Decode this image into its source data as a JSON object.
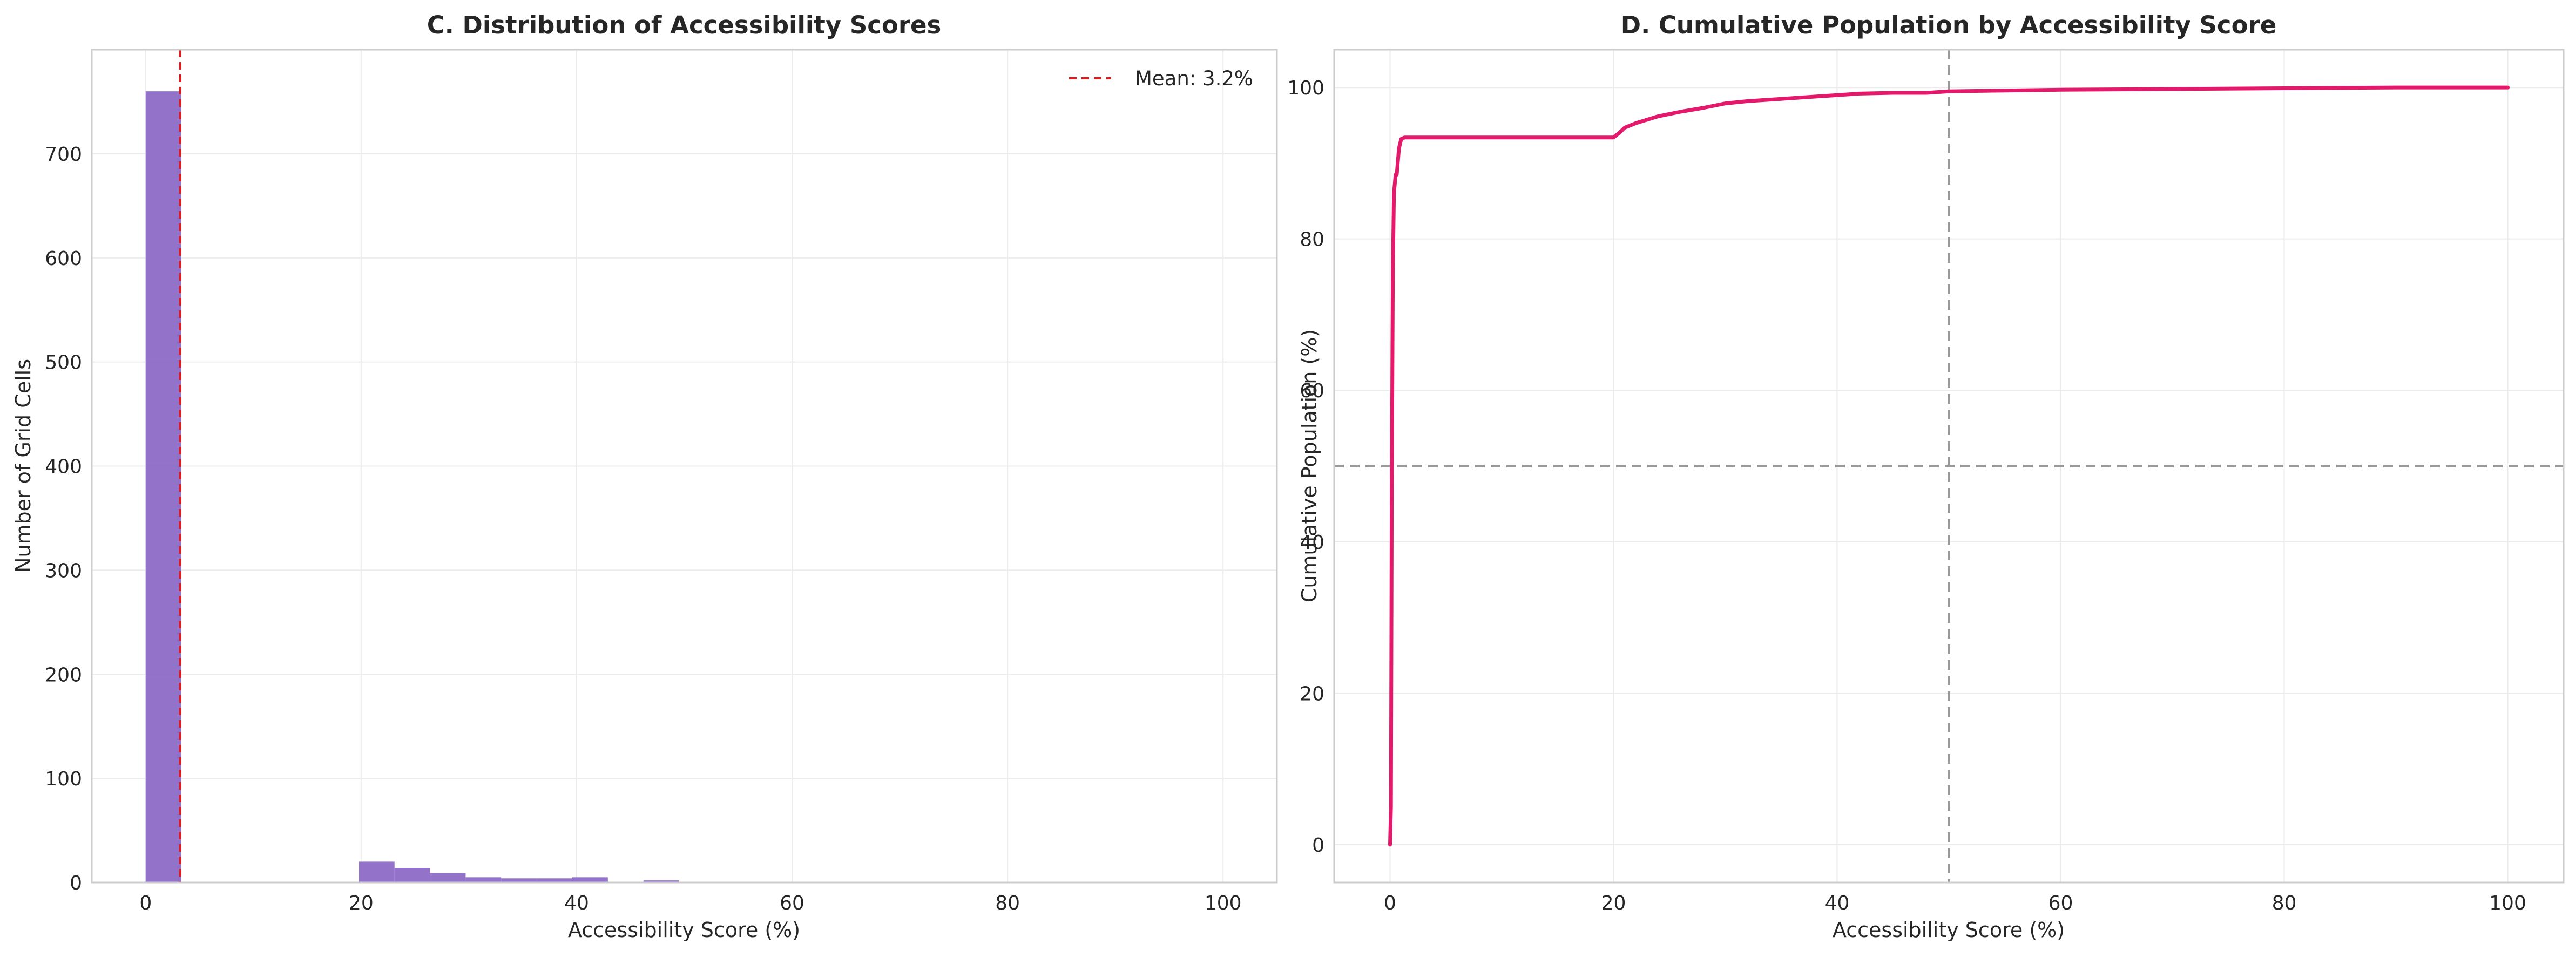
{
  "chart_data": [
    {
      "id": "C",
      "type": "bar",
      "title": "C. Distribution of Accessibility Scores",
      "xlabel": "Accessibility Score (%)",
      "ylabel": "Number of Grid Cells",
      "xlim": [
        -5,
        105
      ],
      "ylim": [
        0,
        800
      ],
      "xticks": [
        0,
        20,
        40,
        60,
        80,
        100
      ],
      "yticks": [
        0,
        100,
        200,
        300,
        400,
        500,
        600,
        700
      ],
      "grid": true,
      "bar_color": "#8c6bc6",
      "bins": [
        {
          "x0": 0.0,
          "x1": 3.3,
          "value": 760
        },
        {
          "x0": 3.3,
          "x1": 6.6,
          "value": 0
        },
        {
          "x0": 6.6,
          "x1": 9.9,
          "value": 0
        },
        {
          "x0": 9.9,
          "x1": 13.2,
          "value": 0
        },
        {
          "x0": 13.2,
          "x1": 16.5,
          "value": 0
        },
        {
          "x0": 16.5,
          "x1": 19.8,
          "value": 0
        },
        {
          "x0": 19.8,
          "x1": 23.1,
          "value": 20
        },
        {
          "x0": 23.1,
          "x1": 26.4,
          "value": 14
        },
        {
          "x0": 26.4,
          "x1": 29.7,
          "value": 9
        },
        {
          "x0": 29.7,
          "x1": 33.0,
          "value": 5
        },
        {
          "x0": 33.0,
          "x1": 36.3,
          "value": 4
        },
        {
          "x0": 36.3,
          "x1": 39.6,
          "value": 4
        },
        {
          "x0": 39.6,
          "x1": 42.9,
          "value": 5
        },
        {
          "x0": 42.9,
          "x1": 46.2,
          "value": 0
        },
        {
          "x0": 46.2,
          "x1": 49.5,
          "value": 2
        },
        {
          "x0": 49.5,
          "x1": 52.8,
          "value": 0
        }
      ],
      "mean_line": {
        "x": 3.2,
        "color": "#e31a1c",
        "label": "Mean: 3.2%"
      },
      "legend_position": "top-right"
    },
    {
      "id": "D",
      "type": "line",
      "title": "D. Cumulative Population by Accessibility Score",
      "xlabel": "Accessibility Score (%)",
      "ylabel": "Cumulative Population (%)",
      "xlim": [
        -5,
        105
      ],
      "ylim": [
        -5,
        105
      ],
      "xticks": [
        0,
        20,
        40,
        60,
        80,
        100
      ],
      "yticks": [
        0,
        20,
        40,
        60,
        80,
        100
      ],
      "grid": true,
      "line_color": "#e31a6b",
      "reference_lines": {
        "x": 50,
        "y": 50,
        "color": "#999999"
      },
      "series": [
        {
          "x": [
            0,
            0.08,
            0.15,
            0.25,
            0.35,
            0.5,
            0.6,
            0.8,
            1.0,
            1.3,
            2,
            5,
            10,
            15,
            20.0,
            20.5,
            21,
            22,
            24,
            26,
            28,
            30,
            32,
            35,
            38,
            40,
            42,
            45,
            48,
            50,
            55,
            60,
            70,
            80,
            90,
            100
          ],
          "y": [
            0,
            5,
            45,
            76,
            86,
            88.5,
            88.5,
            92,
            93.2,
            93.4,
            93.4,
            93.4,
            93.4,
            93.4,
            93.4,
            94,
            94.7,
            95.3,
            96.2,
            96.8,
            97.3,
            97.9,
            98.2,
            98.5,
            98.8,
            99.0,
            99.2,
            99.3,
            99.3,
            99.5,
            99.6,
            99.7,
            99.8,
            99.9,
            100,
            100
          ]
        }
      ]
    }
  ]
}
